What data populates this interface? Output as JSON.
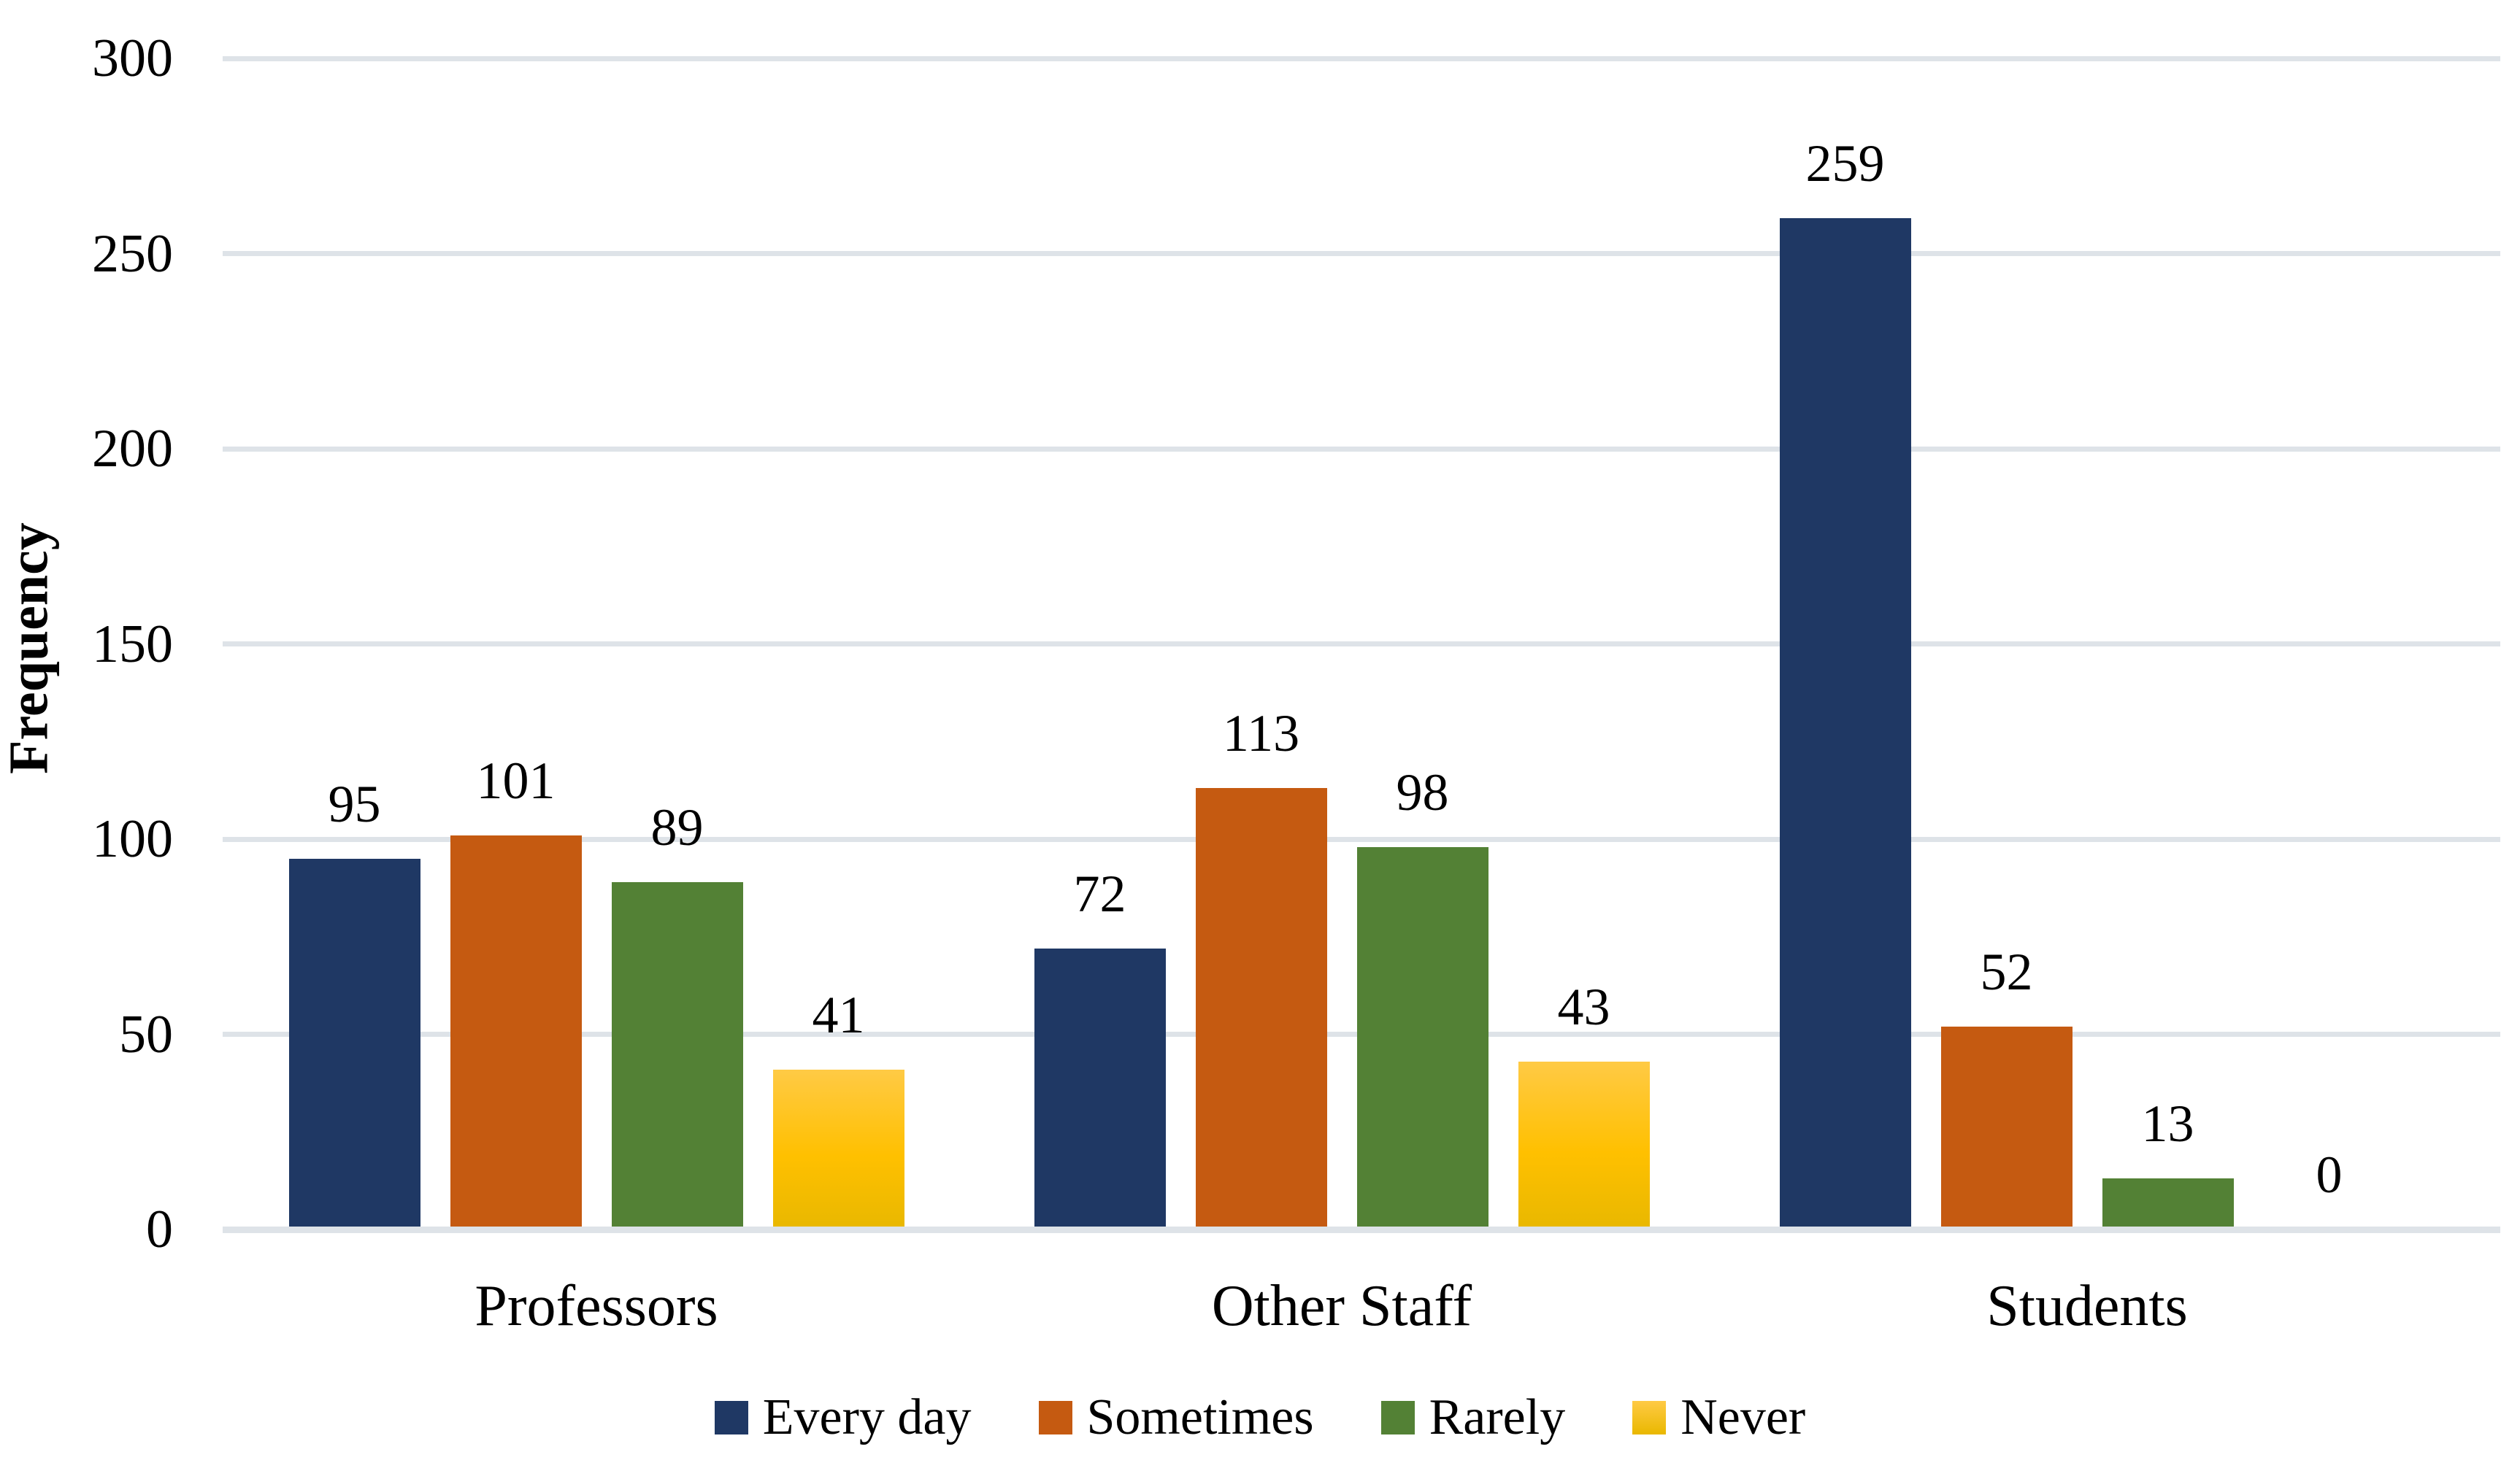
{
  "chart_data": {
    "type": "bar",
    "title": "",
    "categories": [
      "Professors",
      "Other Staff",
      "Students"
    ],
    "series": [
      {
        "name": "Every day",
        "color": "#1f3864",
        "values": [
          95,
          72,
          259
        ]
      },
      {
        "name": "Sometimes",
        "color": "#c55a11",
        "values": [
          101,
          113,
          52
        ]
      },
      {
        "name": "Rarely",
        "color": "#538135",
        "values": [
          89,
          98,
          13
        ]
      },
      {
        "name": "Never",
        "color": "#ffc000",
        "gradient_top": "#ffca45",
        "gradient_bottom": "#e9b800",
        "values": [
          41,
          43,
          0
        ]
      }
    ],
    "value_labels": {
      "Professors": [
        95,
        101,
        89,
        41
      ],
      "Other Staff": [
        72,
        113,
        98,
        43
      ],
      "Students": [
        259,
        52,
        13,
        0
      ]
    },
    "xlabel": "",
    "ylabel": "Frequency",
    "ylim": [
      0,
      300
    ],
    "yticks": [
      0,
      50,
      100,
      150,
      200,
      250,
      300
    ],
    "grid": true,
    "legend_position": "bottom"
  },
  "colors": {
    "background": "#ffffff",
    "gridline": "#dee3e8",
    "text": "#000000"
  }
}
